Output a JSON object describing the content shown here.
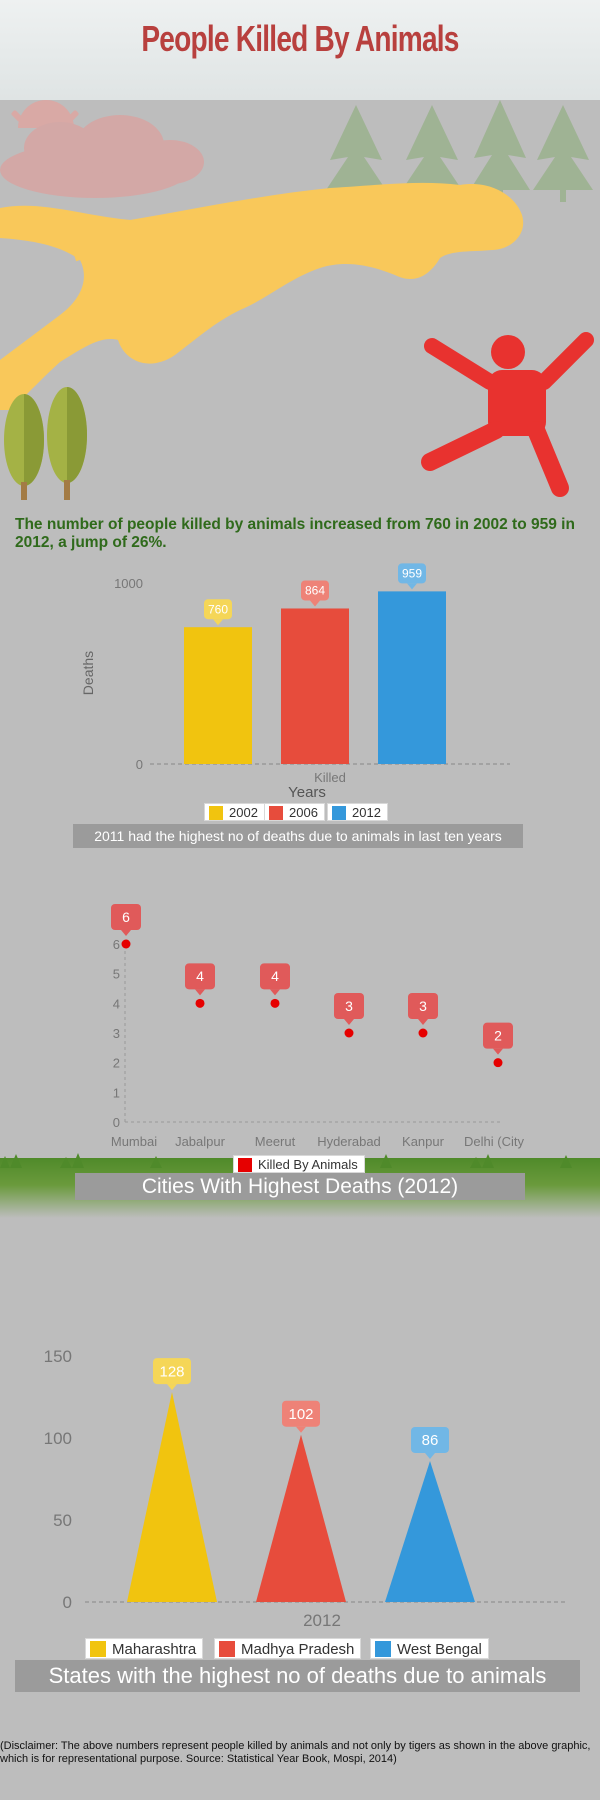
{
  "header": {
    "title": "People Killed By Animals"
  },
  "intro": {
    "text": "The number of people killed by animals increased from 760 in 2002 to 959 in 2012, a jump of 26%."
  },
  "colors": {
    "yellow": "#f1c40f",
    "red": "#e74c3c",
    "blue": "#3498db",
    "title_red": "#b8403e",
    "intro_green": "#2f6a1b",
    "tiger": "#f9c85a",
    "person": "#e8322f",
    "marker_red": "#e60000"
  },
  "hero": {
    "icons": [
      "sun-icon",
      "cloud-icon",
      "pine-tree-icon",
      "tiger-icon",
      "person-icon",
      "poplar-tree-icon"
    ]
  },
  "chart_data": [
    {
      "type": "bar",
      "title": "",
      "xlabel": "Years",
      "ylabel": "Deaths",
      "category_label": "Killed",
      "ylim": [
        0,
        1000
      ],
      "yticks": [
        "0",
        "1000"
      ],
      "series": [
        {
          "name": "2002",
          "value": 760,
          "color": "#f1c40f"
        },
        {
          "name": "2006",
          "value": 864,
          "color": "#e74c3c"
        },
        {
          "name": "2012",
          "value": 959,
          "color": "#3498db"
        }
      ],
      "legend": [
        "2002",
        "2006",
        "2012"
      ],
      "caption": "2011 had the highest no of deaths due to animals in last ten years"
    },
    {
      "type": "scatter",
      "categories": [
        "Mumbai",
        "Jabalpur",
        "Meerut",
        "Hyderabad",
        "Kanpur",
        "Delhi (City)"
      ],
      "tick_labels": [
        "Mumbai",
        "Jabalpur",
        "Meerut",
        "Hyderabad",
        "Kanpur",
        "Delhi (City"
      ],
      "series": [
        {
          "name": "Killed By Animals",
          "values": [
            6,
            4,
            4,
            3,
            3,
            2
          ]
        }
      ],
      "ylim": [
        0,
        6
      ],
      "yticks": [
        "0",
        "1",
        "2",
        "3",
        "4",
        "5",
        "6"
      ],
      "caption": "Cities With Highest Deaths (2012)"
    },
    {
      "type": "bar",
      "subtype": "triangle",
      "category_label": "2012",
      "ylim": [
        0,
        150
      ],
      "yticks": [
        "0",
        "50",
        "100",
        "150"
      ],
      "series": [
        {
          "name": "Maharashtra",
          "value": 128,
          "color": "#f1c40f"
        },
        {
          "name": "Madhya Pradesh",
          "value": 102,
          "color": "#e74c3c"
        },
        {
          "name": "West Bengal",
          "value": 86,
          "color": "#3498db"
        }
      ],
      "legend": [
        "Maharashtra",
        "Madhya Pradesh",
        "West Bengal"
      ],
      "caption": "States with the highest no of deaths due to animals"
    }
  ],
  "footer": {
    "disclaimer": "(Disclaimer: The above numbers represent people killed by animals and not only by tigers as shown in the above graphic, which is for representational purpose. Source: Statistical Year Book, Mospi, 2014)"
  }
}
